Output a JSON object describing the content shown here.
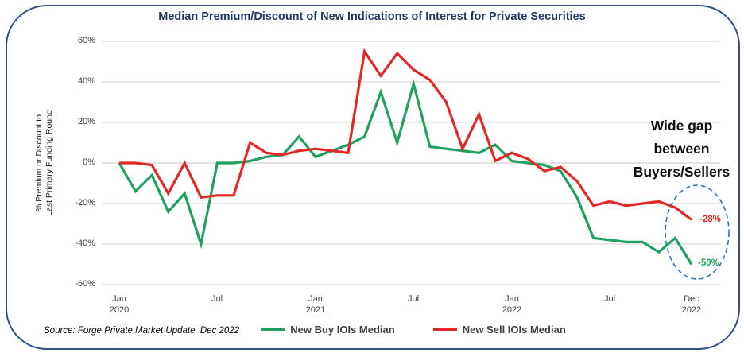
{
  "title": "Median Premium/Discount of New Indications of Interest for Private Securities",
  "chart_data": {
    "type": "line",
    "title": "Median Premium/Discount of New Indications of Interest for Private Securities",
    "ylabel_line1": "% Premium or Discount to",
    "ylabel_line2": "Last Primary Funding Round",
    "ylim": [
      -60,
      60
    ],
    "grid": true,
    "legend_position": "bottom",
    "y_tick_labels": [
      "60%",
      "40%",
      "20%",
      "0%",
      "-20%",
      "-40%",
      "-60%"
    ],
    "x_tick_labels": [
      {
        "line1": "Jan",
        "line2": "2020"
      },
      {
        "line1": "Jul",
        "line2": ""
      },
      {
        "line1": "Jan",
        "line2": "2021"
      },
      {
        "line1": "Jul",
        "line2": ""
      },
      {
        "line1": "Jan",
        "line2": "2022"
      },
      {
        "line1": "Jul",
        "line2": ""
      },
      {
        "line1": "Dec",
        "line2": "2022"
      }
    ],
    "x": [
      "Jan 2020",
      "Feb 2020",
      "Mar 2020",
      "Apr 2020",
      "May 2020",
      "Jun 2020",
      "Jul 2020",
      "Aug 2020",
      "Sep 2020",
      "Oct 2020",
      "Nov 2020",
      "Dec 2020",
      "Jan 2021",
      "Feb 2021",
      "Mar 2021",
      "Apr 2021",
      "May 2021",
      "Jun 2021",
      "Jul 2021",
      "Aug 2021",
      "Sep 2021",
      "Oct 2021",
      "Nov 2021",
      "Dec 2021",
      "Jan 2022",
      "Feb 2022",
      "Mar 2022",
      "Apr 2022",
      "May 2022",
      "Jun 2022",
      "Jul 2022",
      "Aug 2022",
      "Sep 2022",
      "Oct 2022",
      "Nov 2022",
      "Dec 2022"
    ],
    "series": [
      {
        "name": "New Buy IOIs Median",
        "color": "#21a15f",
        "values": [
          0,
          -14,
          -6,
          -24,
          -15,
          -40,
          0,
          0,
          1,
          3,
          4,
          13,
          3,
          6,
          9,
          13,
          35,
          10,
          39,
          8,
          7,
          6,
          5,
          9,
          1,
          0,
          -1,
          -4,
          -17,
          -37,
          -38,
          -39,
          -39,
          -44,
          -37,
          -50
        ]
      },
      {
        "name": "New Sell IOIs Median",
        "color": "#e32726",
        "values": [
          0,
          0,
          -1,
          -15,
          0,
          -17,
          -16,
          -16,
          10,
          5,
          4,
          6,
          7,
          6,
          5,
          55,
          43,
          54,
          46,
          41,
          30,
          7,
          24,
          1,
          5,
          2,
          -4,
          -2,
          -9,
          -21,
          -19,
          -21,
          -20,
          -19,
          -22,
          -28
        ]
      }
    ]
  },
  "annotations": {
    "wide_gap_line1": "Wide gap",
    "wide_gap_line2": "between",
    "wide_gap_line3": "Buyers/Sellers",
    "sell_end_label": "-28%",
    "buy_end_label": "-50%"
  },
  "legend": {
    "buy_label": "New Buy IOIs Median",
    "sell_label": "New Sell IOIs Median"
  },
  "source": "Source: Forge Private Market Update, Dec 2022",
  "colors": {
    "buy": "#21a15f",
    "sell": "#e32726",
    "title": "#1f3864",
    "frame_border": "#2e5188",
    "gridline": "#cfcfcf",
    "ellipse": "#2e75b6",
    "tick_text": "#3f3f3f",
    "legend_text": "#404040"
  }
}
